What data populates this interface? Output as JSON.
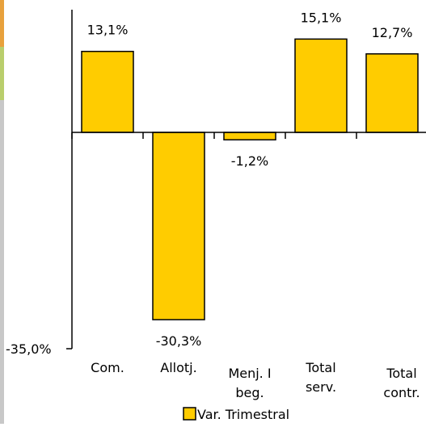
{
  "chart_data": {
    "type": "bar",
    "categories": [
      [
        "Com."
      ],
      [
        "Allotj."
      ],
      [
        "Menj. I",
        "beg."
      ],
      [
        "Total",
        "serv."
      ],
      [
        "Total",
        "contr."
      ]
    ],
    "series": [
      {
        "name": "Var. Trimestral",
        "values": [
          13.1,
          -30.3,
          -1.2,
          15.1,
          12.7
        ],
        "labels": [
          "13,1%",
          "-30,3%",
          "-1,2%",
          "15,1%",
          "12,7%"
        ],
        "color": "#FFCC00"
      }
    ],
    "ylim": [
      -35,
      20
    ],
    "yticks": [
      {
        "value": -35,
        "label": "-35,0%"
      }
    ],
    "title": "",
    "xlabel": "",
    "ylabel": "",
    "grid": false,
    "legend": "bottom"
  },
  "colors": {
    "bar_fill": "#FFCC00",
    "bar_stroke": "#000000",
    "axis": "#000000",
    "edge_orange": "#E8A13C",
    "edge_green": "#B9CE6C",
    "edge_gray": "#C8C8C8"
  }
}
